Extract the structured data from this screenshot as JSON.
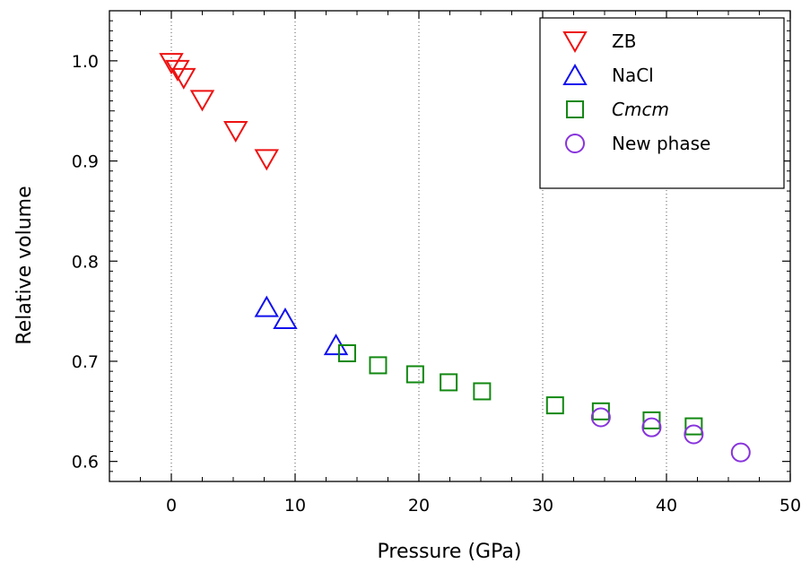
{
  "chart_data": {
    "type": "scatter",
    "xlabel": "Pressure (GPa)",
    "ylabel": "Relative volume",
    "xlim": [
      -5,
      50
    ],
    "ylim": [
      0.58,
      1.05
    ],
    "xticks": [
      0,
      10,
      20,
      30,
      40,
      50
    ],
    "yticks": [
      0.6,
      0.7,
      0.8,
      0.9,
      1.0
    ],
    "xtick_labels": [
      "0",
      "10",
      "20",
      "30",
      "40",
      "50"
    ],
    "ytick_labels": [
      "0.6",
      "0.7",
      "0.8",
      "0.9",
      "1.0"
    ],
    "grid_x": [
      0,
      10,
      20,
      30,
      40
    ],
    "legend_position": "top-right",
    "series": [
      {
        "name": "ZB",
        "marker": "triangle-down",
        "color": "#ee1111",
        "italic": false,
        "x": [
          0.0,
          0.5,
          1.0,
          2.5,
          5.2,
          7.7
        ],
        "y": [
          0.998,
          0.991,
          0.983,
          0.961,
          0.93,
          0.902
        ]
      },
      {
        "name": "NaCl",
        "marker": "triangle-up",
        "color": "#1111ee",
        "italic": false,
        "x": [
          7.7,
          9.2,
          13.3
        ],
        "y": [
          0.754,
          0.742,
          0.716
        ]
      },
      {
        "name": "Cmcm",
        "marker": "square",
        "color": "#118811",
        "italic": true,
        "x": [
          14.2,
          16.7,
          19.7,
          22.4,
          25.1,
          31.0,
          34.7,
          38.8,
          42.2
        ],
        "y": [
          0.708,
          0.696,
          0.687,
          0.679,
          0.67,
          0.656,
          0.65,
          0.641,
          0.635
        ]
      },
      {
        "name": "New phase",
        "marker": "circle",
        "color": "#8833dd",
        "italic": false,
        "x": [
          34.7,
          38.8,
          42.2,
          46.0
        ],
        "y": [
          0.644,
          0.634,
          0.627,
          0.609
        ]
      }
    ]
  }
}
